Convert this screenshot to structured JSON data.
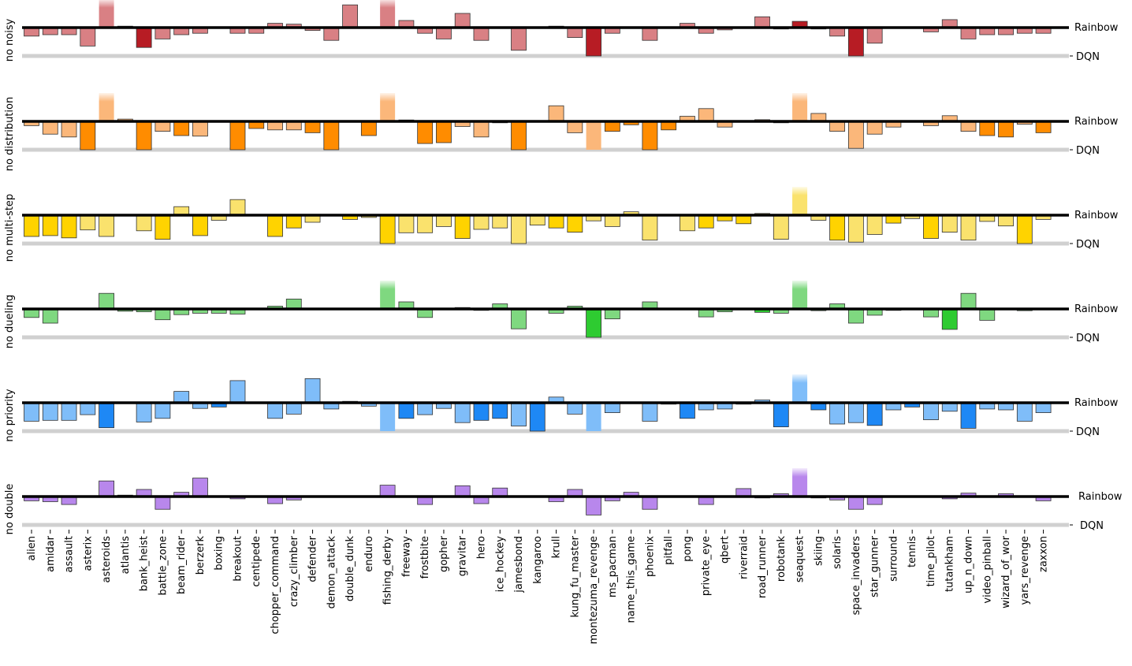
{
  "chart_data": {
    "type": "bar",
    "ylim": [
      -1,
      1
    ],
    "reference_lines": {
      "upper": "Rainbow",
      "lower": "DQN"
    },
    "categories": [
      "alien",
      "amidar",
      "assault",
      "asterix",
      "asteroids",
      "atlantis",
      "bank_heist",
      "battle_zone",
      "beam_rider",
      "berzerk",
      "boxing",
      "breakout",
      "centipede",
      "chopper_command",
      "crazy_climber",
      "defender",
      "demon_attack",
      "double_dunk",
      "enduro",
      "fishing_derby",
      "freeway",
      "frostbite",
      "gopher",
      "gravitar",
      "hero",
      "ice_hockey",
      "jamesbond",
      "kangaroo",
      "krull",
      "kung_fu_master",
      "montezuma_revenge",
      "ms_pacman",
      "name_this_game",
      "phoenix",
      "pitfall",
      "pong",
      "private_eye",
      "qbert",
      "riverraid",
      "road_runner",
      "robotank",
      "seaquest",
      "skiing",
      "solaris",
      "space_invaders",
      "star_gunner",
      "surround",
      "tennis",
      "time_pilot",
      "tutankham",
      "up_n_down",
      "video_pinball",
      "wizard_of_wor",
      "yars_revenge",
      "zaxxon"
    ],
    "series": [
      {
        "name": "no noisy",
        "light_color": "#d98084",
        "dark_color": "#b71c24",
        "values": [
          -0.3,
          -0.25,
          -0.25,
          -0.65,
          1.0,
          0.05,
          -0.7,
          -0.4,
          -0.25,
          -0.2,
          0,
          -0.2,
          -0.2,
          0.15,
          0.12,
          -0.1,
          -0.45,
          0.8,
          0,
          1.0,
          0.25,
          -0.2,
          -0.4,
          0.5,
          -0.45,
          0,
          -0.8,
          0,
          0.05,
          -0.35,
          -1.0,
          -0.2,
          0,
          -0.45,
          0,
          0.15,
          -0.2,
          -0.08,
          0,
          0.38,
          -0.05,
          0.22,
          -0.05,
          -0.3,
          -1.0,
          -0.55,
          0,
          0,
          -0.15,
          0.28,
          -0.4,
          -0.25,
          -0.25,
          -0.2,
          -0.2
        ],
        "dark": [
          false,
          false,
          false,
          false,
          false,
          false,
          true,
          false,
          false,
          false,
          false,
          false,
          false,
          false,
          false,
          false,
          false,
          false,
          false,
          false,
          false,
          false,
          false,
          false,
          false,
          false,
          false,
          false,
          false,
          false,
          true,
          false,
          false,
          false,
          false,
          false,
          false,
          false,
          false,
          false,
          true,
          true,
          false,
          false,
          true,
          false,
          false,
          false,
          false,
          false,
          false,
          false,
          false,
          false,
          false
        ]
      },
      {
        "name": "no distribution",
        "light_color": "#fbb77a",
        "dark_color": "#ff8c00",
        "values": [
          -0.15,
          -0.45,
          -0.55,
          -1.0,
          1.0,
          0.08,
          -1.0,
          -0.35,
          -0.5,
          -0.52,
          0,
          -1.0,
          -0.25,
          -0.3,
          -0.3,
          -0.4,
          -1.0,
          0,
          -0.5,
          1.0,
          0.05,
          -0.78,
          -0.75,
          -0.18,
          -0.55,
          -0.05,
          -1.0,
          0,
          0.55,
          -0.4,
          -1.0,
          -0.35,
          -0.12,
          -1.0,
          -0.3,
          0.18,
          0.45,
          -0.2,
          0,
          0.06,
          -0.05,
          1.0,
          0.28,
          -0.35,
          -0.95,
          -0.45,
          -0.2,
          0,
          -0.15,
          0.2,
          -0.35,
          -0.5,
          -0.55,
          -0.1,
          -0.4
        ],
        "dark": [
          false,
          false,
          false,
          true,
          false,
          false,
          true,
          false,
          true,
          false,
          false,
          true,
          true,
          false,
          false,
          true,
          true,
          false,
          true,
          false,
          false,
          true,
          true,
          false,
          false,
          false,
          true,
          false,
          false,
          false,
          false,
          true,
          true,
          true,
          true,
          false,
          false,
          false,
          false,
          false,
          false,
          false,
          false,
          false,
          false,
          false,
          false,
          false,
          false,
          false,
          false,
          true,
          true,
          false,
          true
        ]
      },
      {
        "name": "no multi-step",
        "light_color": "#fae26d",
        "dark_color": "#ffd300",
        "values": [
          -0.75,
          -0.72,
          -0.8,
          -0.52,
          -0.75,
          0,
          -0.55,
          -0.85,
          0.3,
          -0.72,
          -0.18,
          0.55,
          0,
          -0.75,
          -0.45,
          -0.25,
          0,
          -0.15,
          -0.08,
          -1.0,
          -0.62,
          -0.62,
          -0.4,
          -0.82,
          -0.5,
          -0.45,
          -1.0,
          -0.35,
          -0.45,
          -0.6,
          -0.2,
          -0.4,
          0.12,
          -0.88,
          0,
          -0.55,
          -0.45,
          -0.2,
          -0.3,
          0.06,
          -0.85,
          1.0,
          -0.18,
          -0.88,
          -0.95,
          -0.68,
          -0.28,
          -0.12,
          -0.82,
          -0.6,
          -0.88,
          -0.22,
          -0.38,
          -1.0,
          -0.15
        ],
        "dark": [
          true,
          true,
          true,
          false,
          false,
          false,
          false,
          true,
          false,
          true,
          false,
          false,
          false,
          true,
          true,
          false,
          false,
          true,
          false,
          true,
          false,
          false,
          false,
          true,
          false,
          false,
          false,
          false,
          true,
          true,
          false,
          false,
          false,
          false,
          false,
          false,
          true,
          true,
          true,
          false,
          false,
          false,
          false,
          true,
          false,
          false,
          true,
          false,
          true,
          false,
          false,
          false,
          false,
          true,
          false
        ]
      },
      {
        "name": "no dueling",
        "light_color": "#7fd880",
        "dark_color": "#2ecb31",
        "values": [
          -0.3,
          -0.5,
          0,
          0,
          0.55,
          -0.08,
          -0.1,
          -0.38,
          -0.2,
          -0.15,
          -0.15,
          -0.18,
          0,
          0.1,
          0.35,
          0,
          0,
          0,
          0,
          1.0,
          0.25,
          -0.3,
          0,
          0.05,
          -0.05,
          0.18,
          -0.7,
          0,
          -0.15,
          0.1,
          -1.0,
          -0.35,
          0,
          0.25,
          0,
          0,
          -0.28,
          -0.1,
          0,
          -0.12,
          -0.15,
          1.0,
          -0.06,
          0.18,
          -0.5,
          -0.22,
          -0.05,
          0,
          -0.28,
          -0.72,
          0.55,
          -0.4,
          0,
          -0.06,
          0
        ],
        "dark": [
          false,
          false,
          false,
          false,
          false,
          false,
          false,
          false,
          false,
          false,
          false,
          false,
          false,
          false,
          false,
          false,
          false,
          false,
          false,
          false,
          false,
          false,
          false,
          false,
          false,
          false,
          false,
          false,
          false,
          false,
          true,
          false,
          false,
          false,
          false,
          false,
          false,
          false,
          false,
          true,
          false,
          false,
          false,
          false,
          false,
          false,
          false,
          false,
          false,
          true,
          false,
          false,
          false,
          false,
          false
        ]
      },
      {
        "name": "no priority",
        "light_color": "#7fbdf9",
        "dark_color": "#1e88f5",
        "values": [
          -0.65,
          -0.62,
          -0.62,
          -0.42,
          -0.88,
          0,
          -0.68,
          -0.55,
          0.4,
          -0.2,
          -0.15,
          0.78,
          0,
          -0.55,
          -0.4,
          0.85,
          -0.22,
          0.05,
          -0.12,
          -1.0,
          -0.55,
          -0.42,
          -0.2,
          -0.7,
          -0.62,
          -0.55,
          -0.82,
          -1.0,
          0.2,
          -0.4,
          -1.0,
          -0.35,
          0,
          -0.65,
          -0.05,
          -0.55,
          -0.25,
          -0.22,
          -0.05,
          0.1,
          -0.85,
          1.0,
          -0.25,
          -0.75,
          -0.7,
          -0.8,
          -0.25,
          -0.15,
          -0.6,
          -0.3,
          -0.9,
          -0.22,
          -0.25,
          -0.65,
          -0.35
        ],
        "dark": [
          false,
          false,
          false,
          false,
          true,
          false,
          false,
          false,
          false,
          false,
          true,
          false,
          false,
          false,
          false,
          false,
          false,
          false,
          false,
          false,
          true,
          false,
          false,
          false,
          true,
          true,
          false,
          true,
          false,
          false,
          false,
          false,
          false,
          false,
          false,
          true,
          false,
          false,
          false,
          false,
          true,
          false,
          true,
          false,
          false,
          true,
          false,
          true,
          false,
          false,
          true,
          false,
          false,
          false,
          false
        ]
      },
      {
        "name": "no double",
        "light_color": "#b887ec",
        "dark_color": "#a86ae8",
        "values": [
          -0.15,
          -0.18,
          -0.28,
          0,
          0.55,
          0.05,
          0.25,
          -0.45,
          0.15,
          0.65,
          0,
          -0.08,
          0,
          -0.25,
          -0.12,
          0,
          0,
          0,
          0,
          0.4,
          0,
          -0.28,
          0,
          0.38,
          -0.25,
          0.3,
          0,
          0,
          -0.18,
          0.25,
          -0.65,
          -0.15,
          0.15,
          -0.45,
          0,
          0,
          -0.28,
          0,
          0.28,
          -0.05,
          0.1,
          1.0,
          -0.05,
          -0.12,
          -0.45,
          -0.28,
          0,
          0,
          0,
          -0.08,
          0.12,
          0,
          0.1,
          0,
          -0.15
        ],
        "dark": [
          false,
          false,
          false,
          false,
          false,
          false,
          false,
          false,
          false,
          false,
          false,
          false,
          false,
          false,
          false,
          false,
          false,
          false,
          false,
          false,
          false,
          false,
          false,
          false,
          false,
          false,
          false,
          false,
          false,
          false,
          false,
          false,
          false,
          false,
          false,
          false,
          false,
          false,
          false,
          false,
          false,
          false,
          false,
          false,
          false,
          false,
          false,
          false,
          false,
          false,
          false,
          false,
          false,
          false,
          false
        ]
      }
    ]
  }
}
